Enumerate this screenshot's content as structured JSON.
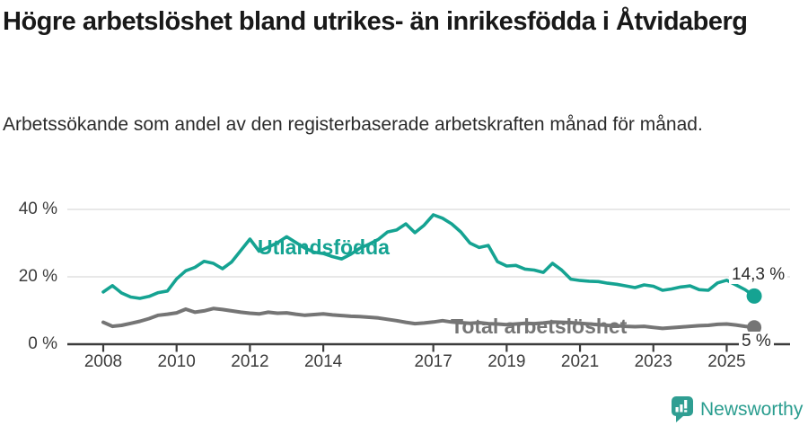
{
  "chart_data": {
    "type": "line",
    "title": "Högre arbetslöshet bland utrikes- än inrikesfödda i Åtvidaberg",
    "subtitle": "Arbetssökande som andel av den registerbaserade arbetskraften månad för månad.",
    "x_unit": "year",
    "x_start": 2008,
    "x_step": 0.25,
    "xlim": [
      2007,
      2026
    ],
    "ylim": [
      0,
      44
    ],
    "grid": true,
    "legend_position": "inline-labels",
    "x_ticks": [
      2008,
      2010,
      2012,
      2014,
      2017,
      2019,
      2021,
      2023,
      2025
    ],
    "y_ticks": [
      {
        "value": 0,
        "label": "0 %"
      },
      {
        "value": 20,
        "label": "20 %"
      },
      {
        "value": 40,
        "label": "40 %"
      }
    ],
    "axis_color": "#3c3c3c",
    "grid_color": "#dadada",
    "series": [
      {
        "id": "utlandsfodda",
        "name": "Utlandsfödda",
        "color": "#15a392",
        "width": 3.6,
        "dot_r": 8.5,
        "end_label": "14,3 %",
        "end_value": 14.3,
        "values": [
          15.5,
          17.4,
          15.2,
          14.0,
          13.6,
          14.2,
          15.3,
          15.8,
          19.4,
          21.8,
          22.8,
          24.6,
          24.0,
          22.4,
          24.4,
          27.8,
          31.2,
          27.6,
          28.8,
          30.1,
          31.9,
          30.2,
          28.5,
          27.3,
          26.9,
          26.0,
          25.3,
          26.7,
          28.5,
          29.7,
          31.1,
          33.3,
          33.9,
          35.7,
          33.1,
          35.3,
          38.4,
          37.4,
          35.7,
          33.3,
          30.0,
          28.7,
          29.3,
          24.5,
          23.2,
          23.4,
          22.3,
          22.0,
          21.3,
          24.0,
          22.0,
          19.3,
          18.9,
          18.7,
          18.6,
          18.1,
          17.8,
          17.3,
          16.8,
          17.6,
          17.2,
          16.0,
          16.4,
          17.0,
          17.3,
          16.2,
          16.0,
          18.2,
          19.0,
          17.6,
          16.2,
          14.3
        ]
      },
      {
        "id": "total",
        "name": "Total arbetslöshet",
        "color": "#757575",
        "width": 4,
        "dot_r": 8,
        "end_label": "5 %",
        "end_value": 5.0,
        "values": [
          6.5,
          5.3,
          5.6,
          6.2,
          6.8,
          7.6,
          8.6,
          8.9,
          9.3,
          10.4,
          9.5,
          9.9,
          10.6,
          10.3,
          9.9,
          9.5,
          9.2,
          9.0,
          9.5,
          9.2,
          9.3,
          8.9,
          8.6,
          8.8,
          9.0,
          8.7,
          8.5,
          8.3,
          8.2,
          8.0,
          7.8,
          7.4,
          7.0,
          6.5,
          6.1,
          6.3,
          6.6,
          7.0,
          6.6,
          6.4,
          6.2,
          6.4,
          6.1,
          6.0,
          5.8,
          6.0,
          6.2,
          6.1,
          6.3,
          6.6,
          6.5,
          6.4,
          6.2,
          6.0,
          5.8,
          5.6,
          5.5,
          5.3,
          5.2,
          5.3,
          5.0,
          4.7,
          4.9,
          5.1,
          5.3,
          5.5,
          5.6,
          5.9,
          6.0,
          5.7,
          5.3,
          5.0
        ]
      }
    ]
  },
  "footer": {
    "brand": "Newsworthy",
    "brand_color": "#2a9d8f",
    "icon_color": "#2f9e92",
    "icon": "speech-bubble-bar-chart"
  }
}
